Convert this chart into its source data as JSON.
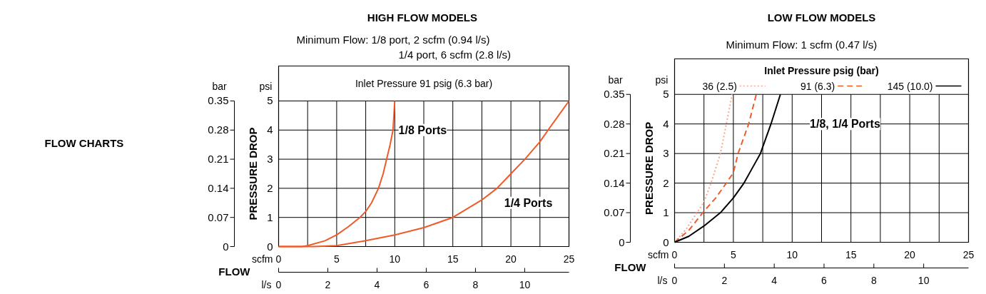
{
  "chart_data": [
    {
      "type": "line",
      "title": "HIGH  FLOW MODELS",
      "subtitle": "Minimum Flow: 1/8 port, 2 scfm (0.94 l/s)\n1/4 port, 6 scfm (2.8 l/s)",
      "ylabel": "PRESSURE DROP",
      "annotations": [
        "FLOW CHARTS",
        "Inlet Pressure 91 psig (6.3 bar)",
        "bar",
        "psi",
        "scfm",
        "FLOW",
        "l/s"
      ],
      "xlim": [
        0,
        25
      ],
      "xticks": [
        0,
        {
          "value": 2.5,
          "label": null
        },
        5,
        {
          "value": 7.5,
          "label": null
        },
        10,
        {
          "value": 12.5,
          "label": null
        },
        15,
        {
          "value": 17.5,
          "label": null
        },
        20,
        {
          "value": 22.5,
          "label": null
        },
        25
      ],
      "ylim": [
        0,
        6.2
      ],
      "yticks": [
        0,
        1,
        2,
        3,
        4,
        5
      ],
      "y2lim": [
        0,
        0.434
      ],
      "y2ticks": [
        0,
        0.07,
        0.14,
        0.21,
        0.28,
        0.35
      ],
      "x2lim": [
        0,
        11.8
      ],
      "x2ticks": [
        0,
        2,
        4,
        6,
        8,
        10
      ],
      "grid": true,
      "legend": false,
      "series": [
        {
          "name": "1/8 Ports",
          "color": "#f05a28",
          "x": [
            0,
            2,
            2.5,
            4,
            5,
            6,
            7,
            7.5,
            8,
            8.6,
            9,
            9.3,
            9.6,
            9.85,
            10
          ],
          "values": [
            0,
            0,
            0.03,
            0.2,
            0.4,
            0.68,
            1.0,
            1.2,
            1.5,
            2,
            2.5,
            3,
            3.5,
            4,
            5
          ]
        },
        {
          "name": "1/4 Ports",
          "color": "#f05a28",
          "x": [
            0,
            3,
            5,
            7.5,
            10,
            12.5,
            15,
            17.5,
            18.8,
            20,
            21.2,
            22.5,
            23.2,
            24.1,
            25
          ],
          "values": [
            0,
            0,
            0.03,
            0.2,
            0.4,
            0.65,
            1.0,
            1.6,
            2,
            2.5,
            3,
            3.6,
            4,
            4.5,
            5
          ]
        }
      ]
    },
    {
      "type": "line",
      "title": "LOW FLOW MODELS",
      "subtitle": "Minimum Flow: 1 scfm (0.47 l/s)",
      "ylabel": "PRESSURE DROP",
      "legend_title": "Inlet Pressure psig (bar)",
      "annotations": [
        "1/8, 1/4 Ports",
        "bar",
        "psi",
        "scfm",
        "FLOW",
        "l/s"
      ],
      "xlim": [
        0,
        25
      ],
      "xticks": [
        0,
        {
          "value": 2.5,
          "label": null
        },
        5,
        {
          "value": 7.5,
          "label": null
        },
        10,
        {
          "value": 12.5,
          "label": null
        },
        15,
        {
          "value": 17.5,
          "label": null
        },
        20,
        {
          "value": 22.5,
          "label": null
        },
        25
      ],
      "ylim": [
        0,
        6.2
      ],
      "yticks": [
        0,
        1,
        2,
        3,
        4,
        5
      ],
      "y2lim": [
        0,
        0.434
      ],
      "y2ticks": [
        0,
        0.07,
        0.14,
        0.21,
        0.28,
        0.35
      ],
      "x2lim": [
        0,
        11.8
      ],
      "x2ticks": [
        0,
        2,
        4,
        6,
        8,
        10
      ],
      "grid": true,
      "legend": "top",
      "series": [
        {
          "name": "36 (2.5)",
          "color": "#f7a88a",
          "line_style": "dotted",
          "x": [
            0,
            1,
            1.9,
            2.5,
            3.1,
            3.9,
            4.4,
            4.9
          ],
          "values": [
            0,
            0.45,
            1,
            1.36,
            2,
            3,
            4,
            5
          ]
        },
        {
          "name": "91 (6.3)",
          "color": "#f05a28",
          "line_style": "dashed",
          "x": [
            0,
            1.2,
            2.4,
            3.5,
            4.4,
            5,
            5.4,
            6.3,
            6.95
          ],
          "values": [
            0,
            0.4,
            1,
            1.5,
            2,
            2.35,
            3,
            4,
            5
          ]
        },
        {
          "name": "145 (10.0)",
          "color": "#000000",
          "line_style": "solid",
          "x": [
            0,
            1.2,
            2.5,
            3.9,
            5,
            5.9,
            6.6,
            7.3,
            8.2,
            9
          ],
          "values": [
            0,
            0.2,
            0.55,
            1,
            1.5,
            2,
            2.5,
            3,
            4,
            5
          ]
        }
      ]
    }
  ]
}
